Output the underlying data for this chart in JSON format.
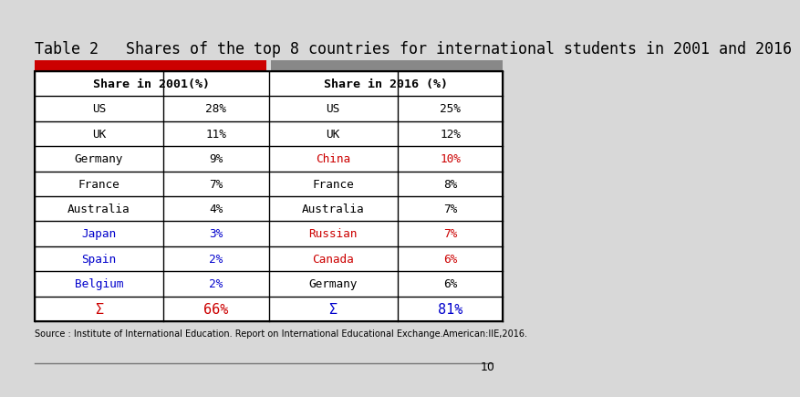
{
  "title": "Table 2   Shares of the top 8 countries for international students in 2001 and 2016",
  "source_text": "Source : Institute of International Education. Report on International Educational Exchange.American:IIE,2016.",
  "page_number": "10",
  "col_headers": [
    "Share in 2001(%)",
    "Share in 2016 (%)"
  ],
  "rows_2001": [
    {
      "country": "US",
      "share": "28%",
      "country_color": "#000000",
      "share_color": "#000000"
    },
    {
      "country": "UK",
      "share": "11%",
      "country_color": "#000000",
      "share_color": "#000000"
    },
    {
      "country": "Germany",
      "share": "9%",
      "country_color": "#000000",
      "share_color": "#000000"
    },
    {
      "country": "France",
      "share": "7%",
      "country_color": "#000000",
      "share_color": "#000000"
    },
    {
      "country": "Australia",
      "share": "4%",
      "country_color": "#000000",
      "share_color": "#000000"
    },
    {
      "country": "Japan",
      "share": "3%",
      "country_color": "#0000cc",
      "share_color": "#0000cc"
    },
    {
      "country": "Spain",
      "share": "2%",
      "country_color": "#0000cc",
      "share_color": "#0000cc"
    },
    {
      "country": "Belgium",
      "share": "2%",
      "country_color": "#0000cc",
      "share_color": "#0000cc"
    }
  ],
  "rows_2016": [
    {
      "country": "US",
      "share": "25%",
      "country_color": "#000000",
      "share_color": "#000000"
    },
    {
      "country": "UK",
      "share": "12%",
      "country_color": "#000000",
      "share_color": "#000000"
    },
    {
      "country": "China",
      "share": "10%",
      "country_color": "#cc0000",
      "share_color": "#cc0000"
    },
    {
      "country": "France",
      "share": "8%",
      "country_color": "#000000",
      "share_color": "#000000"
    },
    {
      "country": "Australia",
      "share": "7%",
      "country_color": "#000000",
      "share_color": "#000000"
    },
    {
      "country": "Russian",
      "share": "7%",
      "country_color": "#cc0000",
      "share_color": "#cc0000"
    },
    {
      "country": "Canada",
      "share": "6%",
      "country_color": "#cc0000",
      "share_color": "#cc0000"
    },
    {
      "country": "Germany",
      "share": "6%",
      "country_color": "#000000",
      "share_color": "#000000"
    }
  ],
  "sigma_2001": {
    "label": "Σ",
    "value": "66%",
    "label_color": "#cc0000",
    "value_color": "#cc0000"
  },
  "sigma_2016": {
    "label": "Σ",
    "value": "81%",
    "label_color": "#0000cc",
    "value_color": "#0000cc"
  },
  "bg_color": "#d8d8d8",
  "table_bg": "#ffffff",
  "header_bar_left_color": "#cc0000",
  "header_bar_right_color": "#888888",
  "title_font_size": 12,
  "font_family": "monospace"
}
